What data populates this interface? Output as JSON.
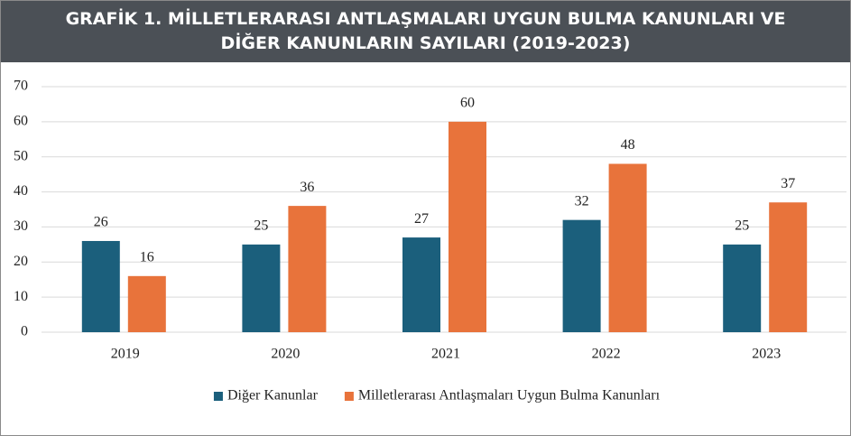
{
  "chart_data": {
    "type": "bar",
    "title": "GRAFİK 1. MİLLETLERARASI ANTLAŞMALARI UYGUN BULMA KANUNLARI VE DİĞER KANUNLARIN SAYILARI (2019-2023)",
    "categories": [
      "2019",
      "2020",
      "2021",
      "2022",
      "2023"
    ],
    "series": [
      {
        "name": "Diğer Kanunlar",
        "color": "#1b5f7c",
        "values": [
          26,
          25,
          27,
          32,
          25
        ]
      },
      {
        "name": "Milletlerarası Antlaşmaları Uygun Bulma Kanunları",
        "color": "#e8733b",
        "values": [
          16,
          36,
          60,
          48,
          37
        ]
      }
    ],
    "ylim": [
      0,
      70
    ],
    "yticks": [
      0,
      10,
      20,
      30,
      40,
      50,
      60,
      70
    ],
    "grid": true,
    "legend": "bottom"
  }
}
